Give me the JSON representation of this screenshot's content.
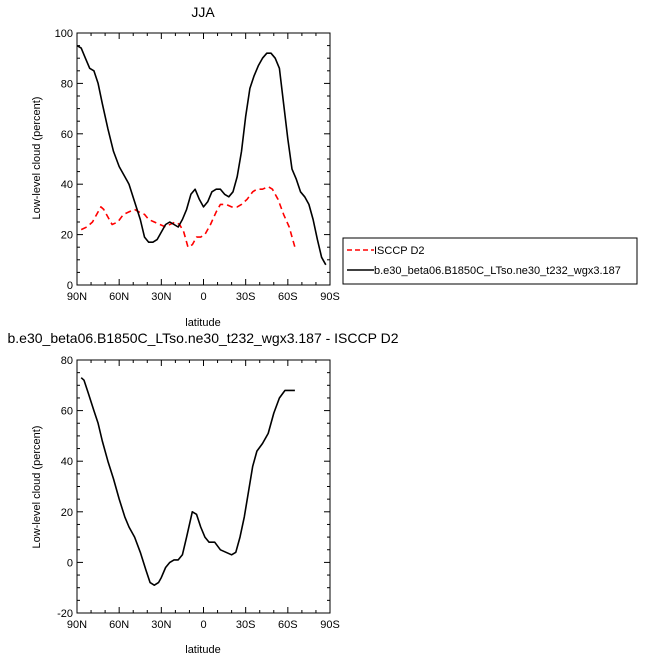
{
  "chart_data": [
    {
      "type": "line",
      "title": "JJA",
      "xlabel": "latitude",
      "ylabel": "Low-level cloud (percent)",
      "xlim": [
        90,
        -90
      ],
      "ylim": [
        0,
        100
      ],
      "x_ticks": [
        90,
        60,
        30,
        0,
        -30,
        -60,
        -90
      ],
      "x_tick_labels": [
        "90N",
        "60N",
        "30N",
        "0",
        "30S",
        "60S",
        "90S"
      ],
      "y_ticks": [
        0,
        20,
        40,
        60,
        80,
        100
      ],
      "y_tick_labels": [
        "0",
        "20",
        "40",
        "60",
        "80",
        "100"
      ],
      "legend_position": "right",
      "series": [
        {
          "name": "ISCCP D2",
          "color": "#ff0000",
          "dash": "dashed",
          "x": [
            87,
            83,
            79,
            76,
            73,
            71,
            68,
            65,
            61,
            57,
            53,
            49,
            46,
            42,
            39,
            35,
            31,
            27,
            24,
            20,
            17,
            14,
            11,
            8,
            5,
            2,
            -1,
            -5,
            -9,
            -12,
            -16,
            -20,
            -24,
            -27,
            -31,
            -35,
            -38,
            -42,
            -46,
            -49,
            -53,
            -57,
            -61,
            -65
          ],
          "y": [
            22,
            23,
            25,
            28,
            31,
            30,
            27,
            24,
            25,
            28,
            29,
            30,
            29,
            28,
            26,
            25,
            24,
            23,
            24,
            25,
            24,
            21,
            15,
            16,
            19,
            19,
            20,
            24,
            29,
            32,
            32,
            31,
            31,
            32,
            34,
            37,
            38,
            38,
            39,
            38,
            34,
            28,
            23,
            15
          ]
        },
        {
          "name": "b.e30_beta06.B1850C_LTso.ne30_t232_wgx3.187",
          "color": "#000000",
          "dash": "solid",
          "x": [
            90,
            87,
            84,
            81,
            78,
            75,
            72,
            68,
            64,
            60,
            56,
            53,
            49,
            45,
            42,
            39,
            36,
            33,
            30,
            27,
            24,
            21,
            18,
            15,
            12,
            9,
            6,
            3,
            0,
            -3,
            -6,
            -9,
            -12,
            -15,
            -18,
            -21,
            -24,
            -27,
            -30,
            -33,
            -36,
            -39,
            -42,
            -45,
            -48,
            -51,
            -54,
            -57,
            -60,
            -63,
            -66,
            -69,
            -72,
            -75,
            -78,
            -81,
            -84,
            -87
          ],
          "y": [
            95,
            94,
            90,
            86,
            85,
            80,
            72,
            62,
            53,
            47,
            43,
            40,
            33,
            26,
            19,
            17,
            17,
            18,
            21,
            24,
            25,
            24,
            23,
            26,
            30,
            36,
            38,
            34,
            31,
            33,
            37,
            38,
            38,
            36,
            35,
            37,
            43,
            53,
            67,
            78,
            83,
            87,
            90,
            92,
            92,
            90,
            86,
            72,
            58,
            46,
            42,
            37,
            35,
            32,
            26,
            18,
            11,
            8
          ]
        }
      ]
    },
    {
      "type": "line",
      "title": "b.e30_beta06.B1850C_LTso.ne30_t232_wgx3.187 - ISCCP D2",
      "xlabel": "latitude",
      "ylabel": "Low-level cloud (percent)",
      "xlim": [
        90,
        -90
      ],
      "ylim": [
        -20,
        80
      ],
      "x_ticks": [
        90,
        60,
        30,
        0,
        -30,
        -60,
        -90
      ],
      "x_tick_labels": [
        "90N",
        "60N",
        "30N",
        "0",
        "30S",
        "60S",
        "90S"
      ],
      "y_ticks": [
        -20,
        0,
        20,
        40,
        60,
        80
      ],
      "y_tick_labels": [
        "-20",
        "0",
        "20",
        "40",
        "60",
        "80"
      ],
      "series": [
        {
          "color": "#000000",
          "dash": "solid",
          "x": [
            87,
            85,
            82,
            78,
            75,
            72,
            68,
            64,
            60,
            56,
            53,
            49,
            45,
            41,
            38,
            35,
            32,
            30,
            27,
            24,
            21,
            18,
            15,
            12,
            8,
            5,
            2,
            -1,
            -4,
            -8,
            -12,
            -16,
            -20,
            -23,
            -26,
            -29,
            -32,
            -35,
            -38,
            -42,
            -46,
            -50,
            -54,
            -58,
            -62,
            -65
          ],
          "y": [
            73,
            72,
            67,
            60,
            55,
            48,
            40,
            33,
            25,
            18,
            14,
            10,
            4,
            -3,
            -8,
            -9,
            -8,
            -6,
            -2,
            0,
            1,
            1,
            3,
            10,
            20,
            19,
            14,
            10,
            8,
            8,
            5,
            4,
            3,
            4,
            10,
            18,
            28,
            38,
            44,
            47,
            51,
            59,
            65,
            68,
            68,
            68
          ]
        }
      ]
    }
  ]
}
